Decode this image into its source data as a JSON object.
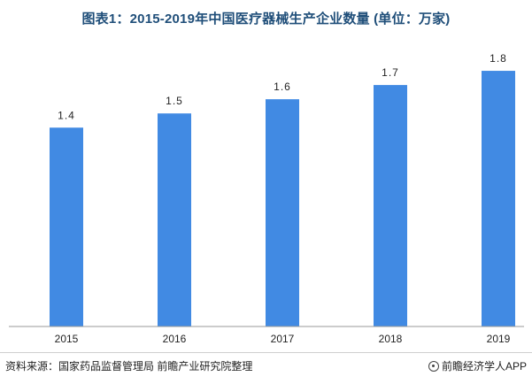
{
  "chart_data": {
    "type": "bar",
    "title": "图表1：2015-2019年中国医疗器械生产企业数量 (单位：万家)",
    "categories": [
      "2015",
      "2016",
      "2017",
      "2018",
      "2019"
    ],
    "values": [
      1.4,
      1.5,
      1.6,
      1.7,
      1.8
    ],
    "data_labels": [
      "1.4",
      "1.5",
      "1.6",
      "1.7",
      "1.8"
    ],
    "ylim": [
      0,
      1.9
    ],
    "grid": false,
    "legend": "none",
    "bar_color": "#418ae3"
  },
  "footer": {
    "source": "资料来源：国家药品监督管理局 前瞻产业研究院整理",
    "brand": "前瞻经济学人APP",
    "brand_icon": "qianzhan-logo-icon"
  }
}
